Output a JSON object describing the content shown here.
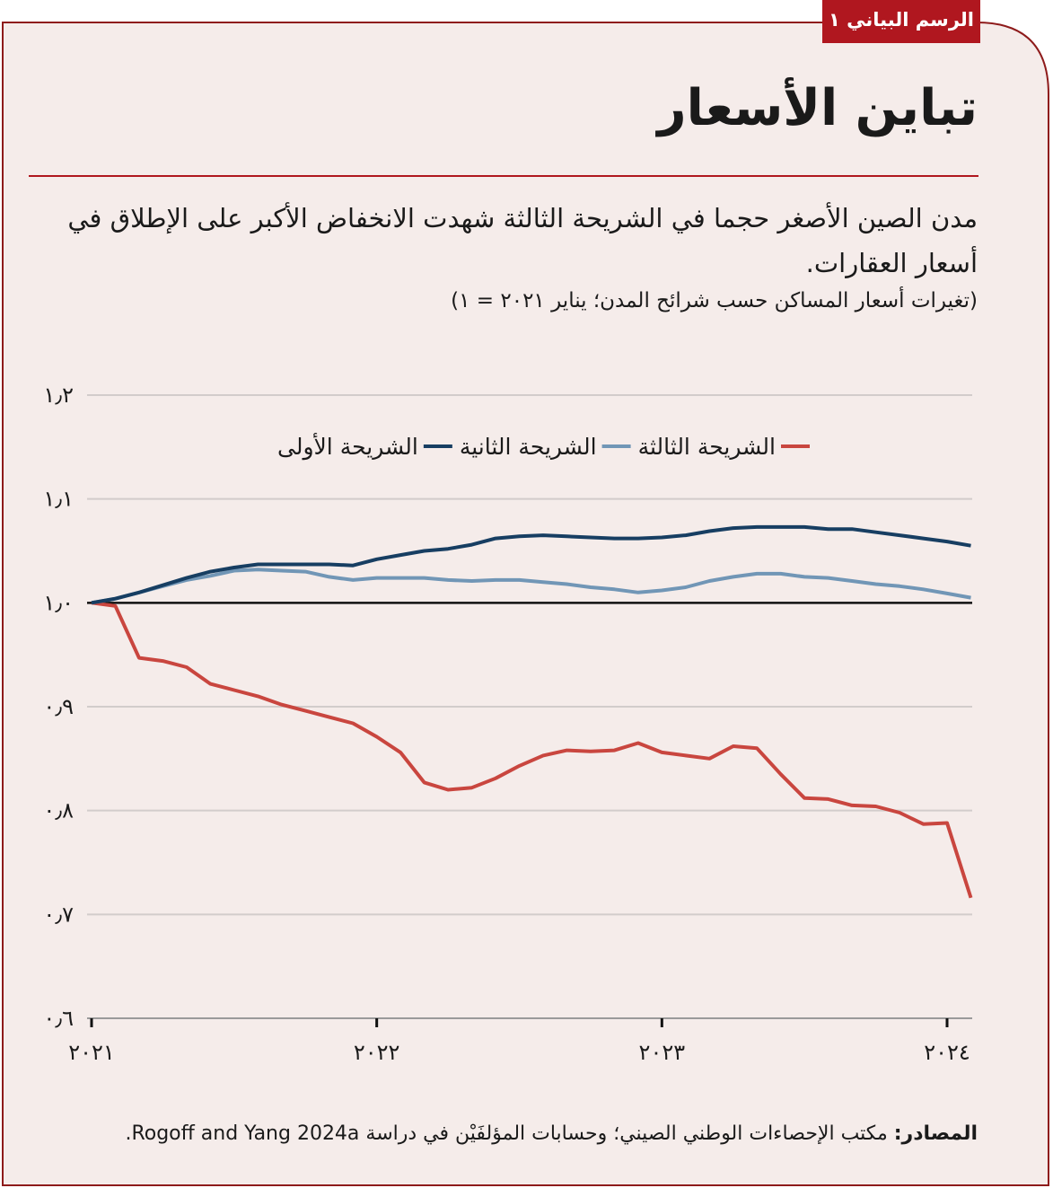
{
  "chart_data": {
    "type": "line",
    "badge": "الرسم البياني ١",
    "title": "تباين الأسعار",
    "subtitle": "مدن الصين الأصغر حجما في الشريحة الثالثة شهدت الانخفاض الأكبر على الإطلاق في أسعار العقارات.",
    "note": "(تغيرات أسعار المساكن حسب شرائح المدن؛ يناير ٢٠٢١ = ١)",
    "source_label": "المصادر:",
    "source": "مكتب الإحصاءات الوطني الصيني؛ وحسابات المؤلفَيْن في دراسة Rogoff and Yang 2024a.",
    "categories": [
      "٢٠٢١",
      null,
      null,
      null,
      null,
      null,
      null,
      null,
      null,
      null,
      null,
      null,
      "٢٠٢٢",
      null,
      null,
      null,
      null,
      null,
      null,
      null,
      null,
      null,
      null,
      null,
      "٢٠٢٣",
      null,
      null,
      null,
      null,
      null,
      null,
      null,
      null,
      null,
      null,
      null,
      "٢٠٢٤",
      null
    ],
    "series": [
      {
        "name": "الشريحة الثالثة",
        "color": "#c9463f",
        "values": [
          1.0,
          0.997,
          0.947,
          0.944,
          0.938,
          0.922,
          0.916,
          0.91,
          0.902,
          0.896,
          0.89,
          0.884,
          0.871,
          0.856,
          0.827,
          0.82,
          0.822,
          0.831,
          0.843,
          0.853,
          0.858,
          0.857,
          0.858,
          0.865,
          0.856,
          0.853,
          0.85,
          0.862,
          0.86,
          0.835,
          0.812,
          0.811,
          0.805,
          0.804,
          0.798,
          0.787,
          0.788,
          0.716
        ]
      },
      {
        "name": "الشريحة الثانية",
        "color": "#7196b6",
        "values": [
          1.0,
          1.004,
          1.01,
          1.016,
          1.022,
          1.026,
          1.031,
          1.032,
          1.031,
          1.03,
          1.025,
          1.022,
          1.024,
          1.024,
          1.024,
          1.022,
          1.021,
          1.022,
          1.022,
          1.02,
          1.018,
          1.015,
          1.013,
          1.01,
          1.012,
          1.015,
          1.021,
          1.025,
          1.028,
          1.028,
          1.025,
          1.024,
          1.021,
          1.018,
          1.016,
          1.013,
          1.009,
          1.005
        ]
      },
      {
        "name": "الشريحة الأولى",
        "color": "#173e62",
        "values": [
          1.0,
          1.004,
          1.01,
          1.017,
          1.024,
          1.03,
          1.034,
          1.037,
          1.037,
          1.037,
          1.037,
          1.036,
          1.042,
          1.046,
          1.05,
          1.052,
          1.056,
          1.062,
          1.064,
          1.065,
          1.064,
          1.063,
          1.062,
          1.062,
          1.063,
          1.065,
          1.069,
          1.072,
          1.073,
          1.073,
          1.073,
          1.071,
          1.071,
          1.068,
          1.065,
          1.062,
          1.059,
          1.055
        ]
      }
    ],
    "ylim": [
      0.6,
      1.2
    ],
    "yticks": [
      {
        "value": 0.6,
        "label": "٠٫٦"
      },
      {
        "value": 0.7,
        "label": "٠٫٧"
      },
      {
        "value": 0.8,
        "label": "٠٫٨"
      },
      {
        "value": 0.9,
        "label": "٠٫٩"
      },
      {
        "value": 1.0,
        "label": "١٫٠"
      },
      {
        "value": 1.1,
        "label": "١٫١"
      },
      {
        "value": 1.2,
        "label": "١٫٢"
      }
    ],
    "reference_line": 1.0,
    "grid": true
  }
}
